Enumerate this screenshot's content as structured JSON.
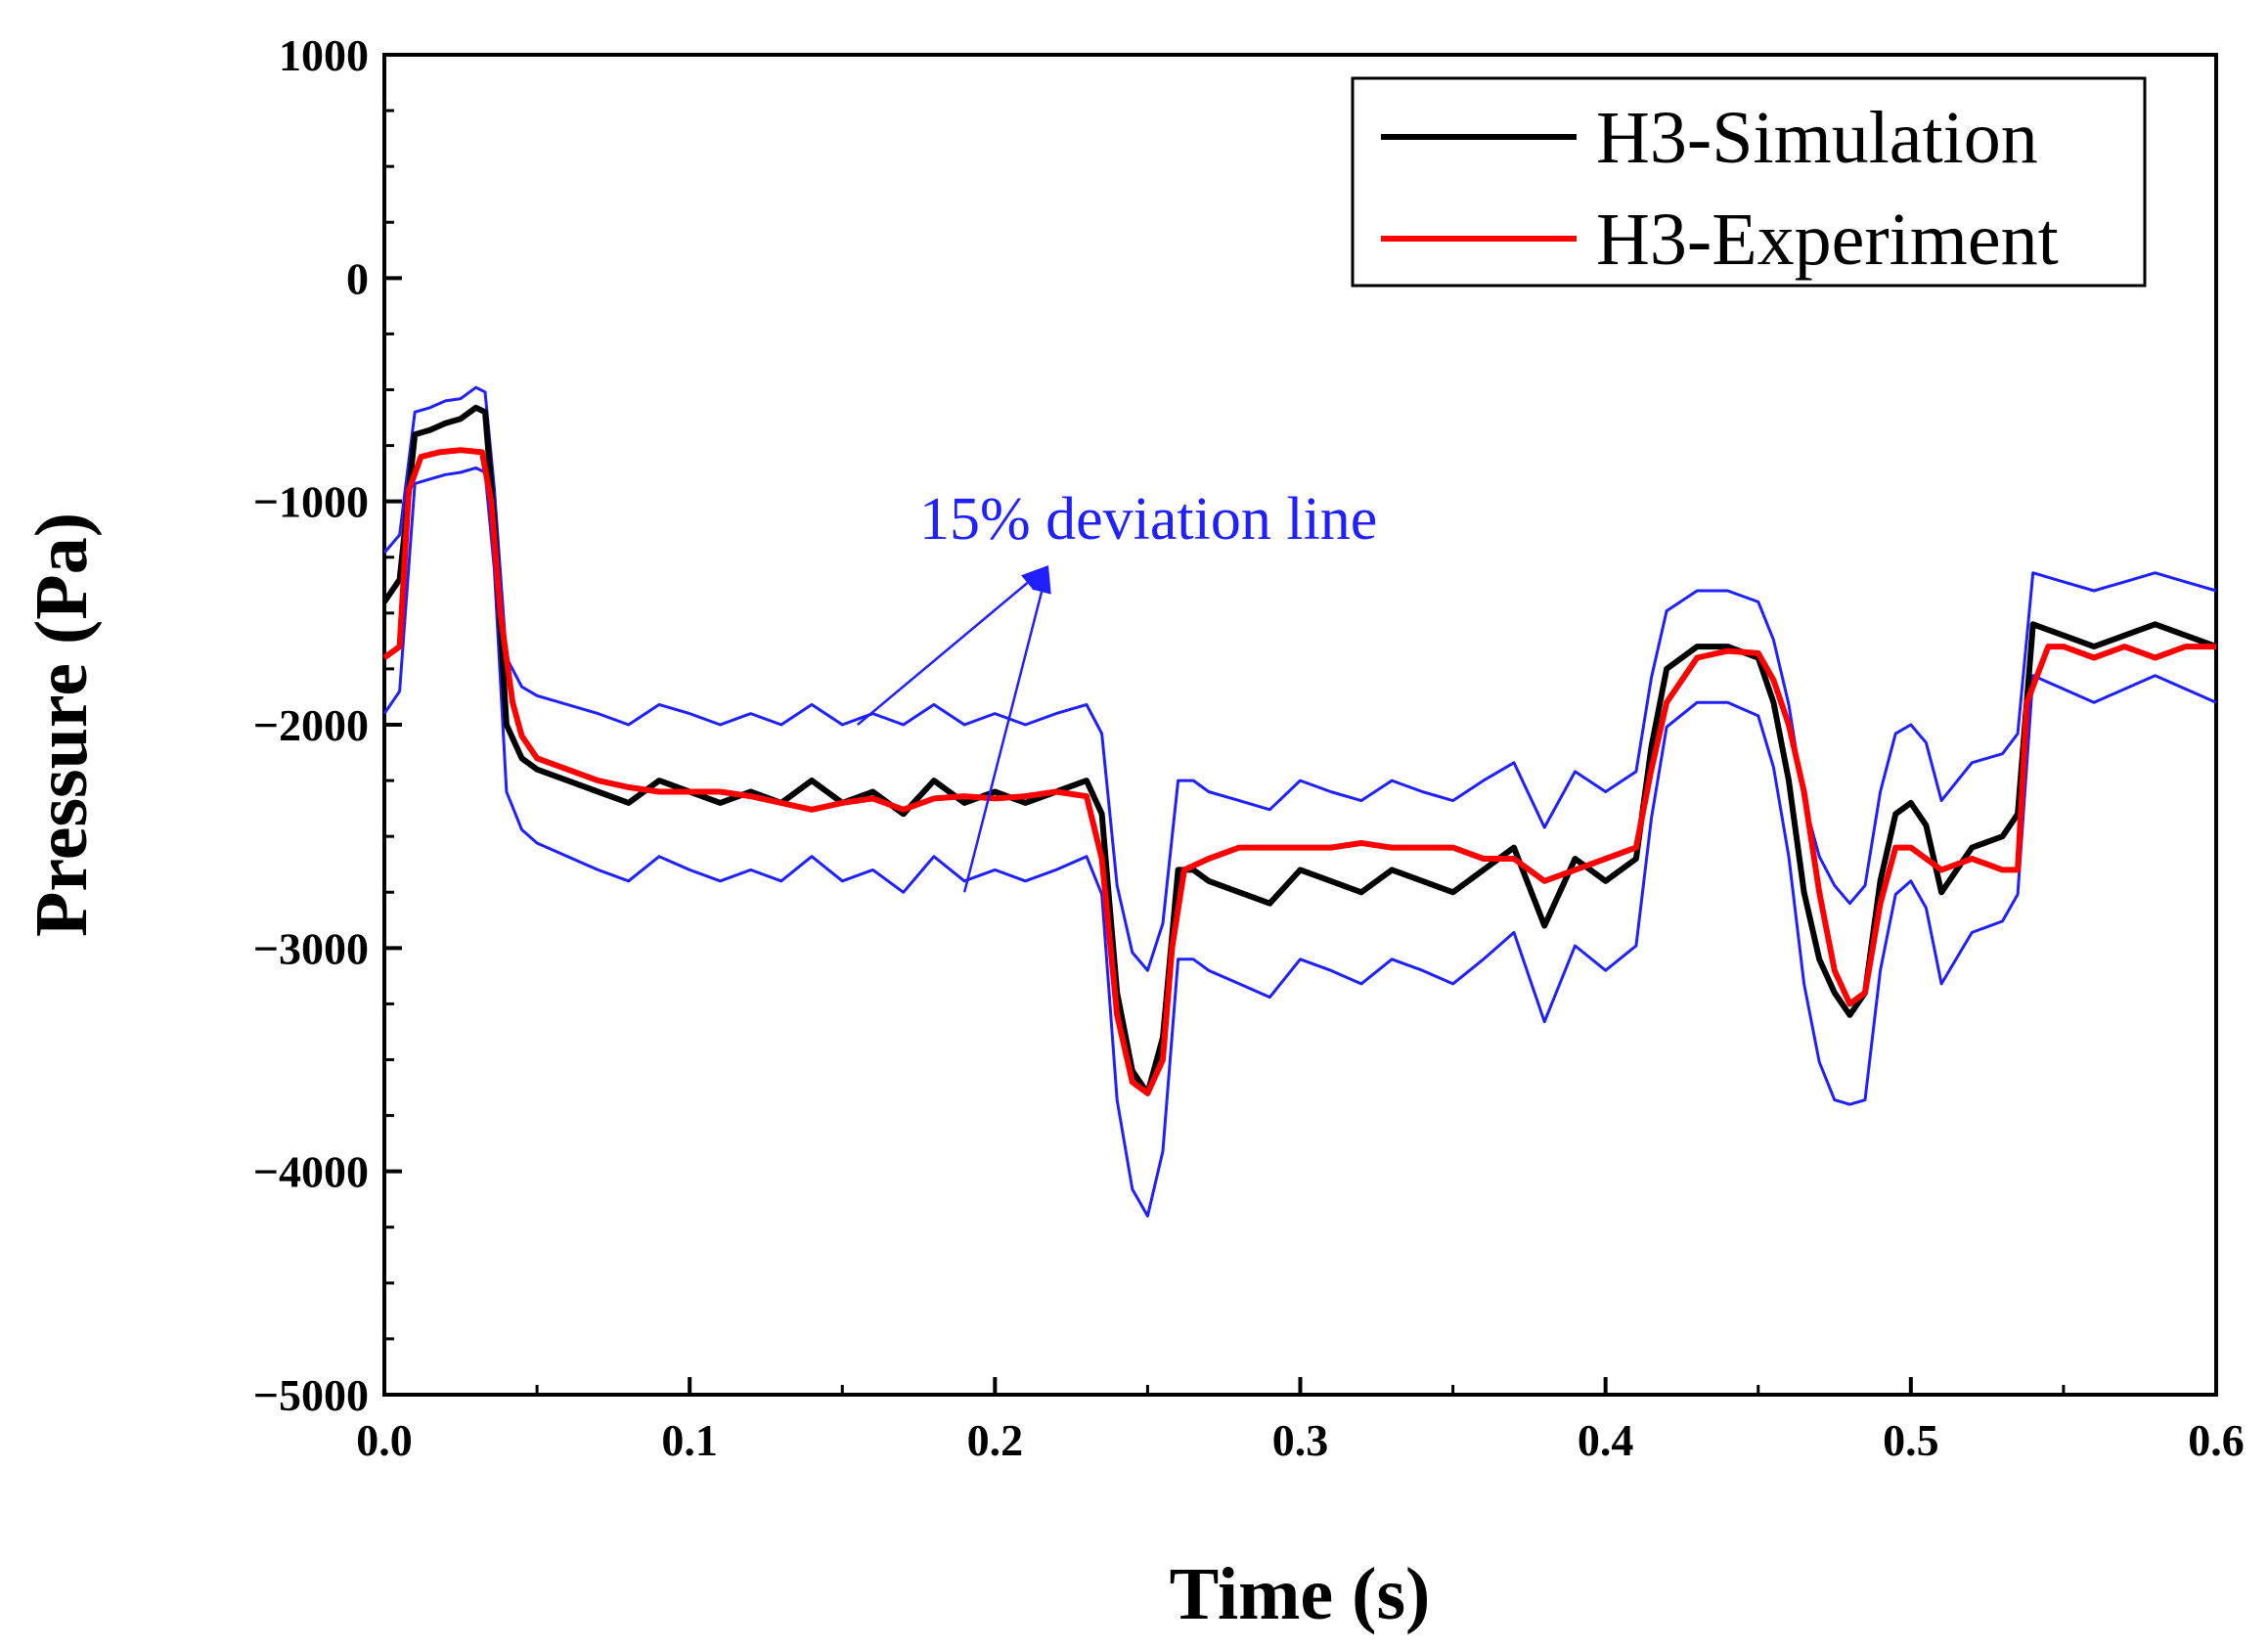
{
  "chart_data": {
    "type": "line",
    "title": "",
    "xlabel": "Time (s)",
    "ylabel": "Pressure (Pa)",
    "xlim": [
      0,
      0.6
    ],
    "ylim": [
      -5000,
      1000
    ],
    "x_ticks": [
      0.0,
      0.1,
      0.2,
      0.3,
      0.4,
      0.5,
      0.6
    ],
    "x_tick_labels": [
      "0.0",
      "0.1",
      "0.2",
      "0.3",
      "0.4",
      "0.5",
      "0.6"
    ],
    "y_ticks": [
      -5000,
      -4000,
      -3000,
      -2000,
      -1000,
      0,
      1000
    ],
    "y_tick_labels": [
      "−5000",
      "−4000",
      "−3000",
      "−2000",
      "−1000",
      "0",
      "1000"
    ],
    "grid": false,
    "legend_position": "top-right",
    "annotation": {
      "text": "15% deviation line",
      "color": "#1f1fff",
      "text_anchor": [
        0.205,
        -1100
      ],
      "arrow_targets": [
        [
          0.155,
          -2000
        ],
        [
          0.19,
          -2750
        ]
      ]
    },
    "deviation_pct": 15,
    "series": [
      {
        "name": "H3-Simulation",
        "color": "#000000",
        "x": [
          0.0,
          0.005,
          0.01,
          0.015,
          0.02,
          0.025,
          0.03,
          0.033,
          0.036,
          0.04,
          0.045,
          0.05,
          0.06,
          0.07,
          0.08,
          0.09,
          0.1,
          0.11,
          0.12,
          0.13,
          0.14,
          0.15,
          0.16,
          0.17,
          0.18,
          0.19,
          0.2,
          0.21,
          0.22,
          0.23,
          0.235,
          0.24,
          0.245,
          0.25,
          0.255,
          0.26,
          0.265,
          0.27,
          0.28,
          0.29,
          0.3,
          0.31,
          0.32,
          0.33,
          0.34,
          0.35,
          0.36,
          0.37,
          0.38,
          0.39,
          0.4,
          0.41,
          0.415,
          0.42,
          0.43,
          0.44,
          0.45,
          0.455,
          0.46,
          0.465,
          0.47,
          0.475,
          0.48,
          0.485,
          0.49,
          0.495,
          0.5,
          0.505,
          0.51,
          0.52,
          0.53,
          0.535,
          0.54,
          0.55,
          0.56,
          0.57,
          0.58,
          0.59,
          0.6
        ],
        "y": [
          -1450,
          -1350,
          -700,
          -680,
          -650,
          -630,
          -580,
          -600,
          -1100,
          -2000,
          -2150,
          -2200,
          -2250,
          -2300,
          -2350,
          -2250,
          -2300,
          -2350,
          -2300,
          -2350,
          -2250,
          -2350,
          -2300,
          -2400,
          -2250,
          -2350,
          -2300,
          -2350,
          -2300,
          -2250,
          -2400,
          -3200,
          -3550,
          -3650,
          -3400,
          -2650,
          -2650,
          -2700,
          -2750,
          -2800,
          -2650,
          -2700,
          -2750,
          -2650,
          -2700,
          -2750,
          -2650,
          -2550,
          -2900,
          -2600,
          -2700,
          -2600,
          -2100,
          -1750,
          -1650,
          -1650,
          -1700,
          -1900,
          -2250,
          -2750,
          -3050,
          -3200,
          -3300,
          -3200,
          -2700,
          -2400,
          -2350,
          -2450,
          -2750,
          -2550,
          -2500,
          -2400,
          -1550,
          -1600,
          -1650,
          -1600,
          -1550,
          -1600,
          -1650
        ]
      },
      {
        "name": "H3-Experiment",
        "color": "#ff0000",
        "x": [
          0.0,
          0.005,
          0.008,
          0.012,
          0.018,
          0.025,
          0.032,
          0.035,
          0.038,
          0.042,
          0.045,
          0.05,
          0.06,
          0.07,
          0.08,
          0.09,
          0.1,
          0.11,
          0.12,
          0.13,
          0.14,
          0.15,
          0.16,
          0.17,
          0.18,
          0.19,
          0.2,
          0.21,
          0.22,
          0.23,
          0.235,
          0.24,
          0.245,
          0.25,
          0.255,
          0.258,
          0.262,
          0.27,
          0.28,
          0.29,
          0.3,
          0.31,
          0.32,
          0.33,
          0.34,
          0.35,
          0.36,
          0.37,
          0.38,
          0.39,
          0.4,
          0.41,
          0.415,
          0.42,
          0.43,
          0.44,
          0.45,
          0.455,
          0.46,
          0.465,
          0.47,
          0.475,
          0.48,
          0.485,
          0.49,
          0.495,
          0.5,
          0.51,
          0.52,
          0.53,
          0.535,
          0.538,
          0.545,
          0.55,
          0.56,
          0.57,
          0.58,
          0.59,
          0.6
        ],
        "y": [
          -1700,
          -1650,
          -950,
          -800,
          -780,
          -770,
          -780,
          -1000,
          -1500,
          -1900,
          -2050,
          -2150,
          -2200,
          -2250,
          -2280,
          -2300,
          -2300,
          -2300,
          -2320,
          -2350,
          -2380,
          -2350,
          -2330,
          -2380,
          -2330,
          -2320,
          -2330,
          -2320,
          -2300,
          -2320,
          -2600,
          -3300,
          -3600,
          -3650,
          -3500,
          -3000,
          -2650,
          -2600,
          -2550,
          -2550,
          -2550,
          -2550,
          -2530,
          -2550,
          -2550,
          -2550,
          -2600,
          -2600,
          -2700,
          -2650,
          -2600,
          -2550,
          -2200,
          -1900,
          -1700,
          -1670,
          -1680,
          -1800,
          -2000,
          -2300,
          -2750,
          -3100,
          -3250,
          -3200,
          -2800,
          -2550,
          -2550,
          -2650,
          -2600,
          -2650,
          -2650,
          -1900,
          -1650,
          -1650,
          -1700,
          -1650,
          -1700,
          -1650,
          -1650
        ]
      },
      {
        "name": "15% deviation line (upper)",
        "color": "#1f1fff",
        "x": [
          0.0,
          0.005,
          0.01,
          0.015,
          0.02,
          0.025,
          0.03,
          0.033,
          0.036,
          0.04,
          0.045,
          0.05,
          0.06,
          0.07,
          0.08,
          0.09,
          0.1,
          0.11,
          0.12,
          0.13,
          0.14,
          0.15,
          0.16,
          0.17,
          0.18,
          0.19,
          0.2,
          0.21,
          0.22,
          0.23,
          0.235,
          0.24,
          0.245,
          0.25,
          0.255,
          0.26,
          0.265,
          0.27,
          0.28,
          0.29,
          0.3,
          0.31,
          0.32,
          0.33,
          0.34,
          0.35,
          0.36,
          0.37,
          0.38,
          0.39,
          0.4,
          0.41,
          0.415,
          0.42,
          0.43,
          0.44,
          0.45,
          0.455,
          0.46,
          0.465,
          0.47,
          0.475,
          0.48,
          0.485,
          0.49,
          0.495,
          0.5,
          0.505,
          0.51,
          0.52,
          0.53,
          0.535,
          0.54,
          0.55,
          0.56,
          0.57,
          0.58,
          0.59,
          0.6
        ],
        "y": [
          -1230,
          -1150,
          -600,
          -580,
          -550,
          -540,
          -490,
          -510,
          -940,
          -1700,
          -1830,
          -1870,
          -1910,
          -1950,
          -2000,
          -1910,
          -1950,
          -2000,
          -1950,
          -2000,
          -1910,
          -2000,
          -1950,
          -2000,
          -1910,
          -2000,
          -1950,
          -2000,
          -1950,
          -1910,
          -2040,
          -2720,
          -3020,
          -3100,
          -2890,
          -2250,
          -2250,
          -2300,
          -2340,
          -2380,
          -2250,
          -2300,
          -2340,
          -2250,
          -2300,
          -2340,
          -2250,
          -2170,
          -2460,
          -2210,
          -2300,
          -2210,
          -1790,
          -1490,
          -1400,
          -1400,
          -1450,
          -1620,
          -1910,
          -2340,
          -2590,
          -2720,
          -2800,
          -2720,
          -2300,
          -2040,
          -2000,
          -2080,
          -2340,
          -2170,
          -2130,
          -2040,
          -1320,
          -1360,
          -1400,
          -1360,
          -1320,
          -1360,
          -1400
        ]
      },
      {
        "name": "15% deviation line (lower)",
        "color": "#1f1fff",
        "x": [
          0.0,
          0.005,
          0.01,
          0.015,
          0.02,
          0.025,
          0.03,
          0.033,
          0.036,
          0.04,
          0.045,
          0.05,
          0.06,
          0.07,
          0.08,
          0.09,
          0.1,
          0.11,
          0.12,
          0.13,
          0.14,
          0.15,
          0.16,
          0.17,
          0.18,
          0.19,
          0.2,
          0.21,
          0.22,
          0.23,
          0.235,
          0.24,
          0.245,
          0.25,
          0.255,
          0.26,
          0.265,
          0.27,
          0.28,
          0.29,
          0.3,
          0.31,
          0.32,
          0.33,
          0.34,
          0.35,
          0.36,
          0.37,
          0.38,
          0.39,
          0.4,
          0.41,
          0.415,
          0.42,
          0.43,
          0.44,
          0.45,
          0.455,
          0.46,
          0.465,
          0.47,
          0.475,
          0.48,
          0.485,
          0.49,
          0.495,
          0.5,
          0.505,
          0.51,
          0.52,
          0.53,
          0.535,
          0.54,
          0.55,
          0.56,
          0.57,
          0.58,
          0.59,
          0.6
        ],
        "y": [
          -1950,
          -1850,
          -920,
          -900,
          -880,
          -870,
          -850,
          -870,
          -1300,
          -2300,
          -2470,
          -2530,
          -2590,
          -2650,
          -2700,
          -2590,
          -2650,
          -2700,
          -2650,
          -2700,
          -2590,
          -2700,
          -2650,
          -2750,
          -2590,
          -2700,
          -2650,
          -2700,
          -2650,
          -2590,
          -2760,
          -3680,
          -4080,
          -4200,
          -3910,
          -3050,
          -3050,
          -3100,
          -3160,
          -3220,
          -3050,
          -3100,
          -3160,
          -3050,
          -3100,
          -3160,
          -3050,
          -2930,
          -3330,
          -2990,
          -3100,
          -2990,
          -2420,
          -2010,
          -1900,
          -1900,
          -1960,
          -2190,
          -2590,
          -3160,
          -3510,
          -3680,
          -3700,
          -3680,
          -3100,
          -2760,
          -2700,
          -2820,
          -3160,
          -2930,
          -2880,
          -2760,
          -1780,
          -1840,
          -1900,
          -1840,
          -1780,
          -1840,
          -1900
        ]
      }
    ]
  }
}
